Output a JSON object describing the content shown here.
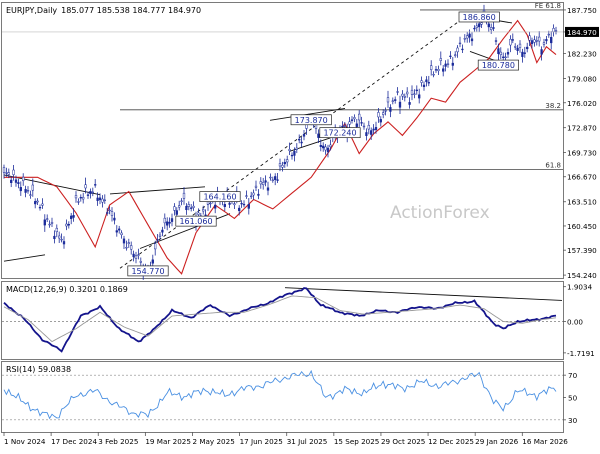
{
  "chart_data": [
    {
      "type": "candlestick",
      "title": "EURJPY,Daily",
      "ohlc_readout": "185.077 185.538 184.777 184.970",
      "current_price": 184.97,
      "watermark": "ActionForex",
      "ylim": [
        154.0,
        188.5
      ],
      "y_ticks": [
        "187.750",
        "184.970",
        "182.230",
        "179.080",
        "176.020",
        "172.870",
        "169.730",
        "166.670",
        "163.510",
        "160.450",
        "157.390",
        "154.240"
      ],
      "y_tick_values": [
        187.75,
        184.97,
        182.23,
        179.08,
        176.02,
        172.87,
        169.73,
        166.67,
        163.51,
        160.45,
        157.39,
        154.24
      ],
      "x_ticks": [
        "1 Nov 2024",
        "17 Dec 2024",
        "3 Feb 2025",
        "19 Mar 2025",
        "2 May 2025",
        "17 Jun 2025",
        "31 Jul 2025",
        "15 Sep 2025",
        "29 Oct 2025",
        "12 Dec 2025",
        "29 Jan 2026",
        "16 Mar 2026"
      ],
      "price_path": [
        [
          0,
          167.0
        ],
        [
          8,
          165.8
        ],
        [
          16,
          162.5
        ],
        [
          24,
          158.2
        ],
        [
          30,
          163.5
        ],
        [
          38,
          165.2
        ],
        [
          46,
          161.0
        ],
        [
          54,
          156.8
        ],
        [
          60,
          154.8
        ],
        [
          66,
          160.0
        ],
        [
          74,
          163.5
        ],
        [
          82,
          161.8
        ],
        [
          90,
          164.2
        ],
        [
          98,
          163.0
        ],
        [
          106,
          165.0
        ],
        [
          114,
          167.0
        ],
        [
          122,
          170.5
        ],
        [
          128,
          173.8
        ],
        [
          134,
          170.0
        ],
        [
          140,
          172.5
        ],
        [
          146,
          174.0
        ],
        [
          152,
          172.3
        ],
        [
          158,
          174.5
        ],
        [
          164,
          177.0
        ],
        [
          170,
          176.5
        ],
        [
          176,
          179.0
        ],
        [
          182,
          180.5
        ],
        [
          188,
          182.0
        ],
        [
          194,
          184.5
        ],
        [
          200,
          186.8
        ],
        [
          204,
          185.0
        ],
        [
          208,
          181.5
        ],
        [
          212,
          183.5
        ],
        [
          216,
          182.5
        ],
        [
          220,
          184.0
        ],
        [
          224,
          183.0
        ],
        [
          228,
          185.0
        ],
        [
          230,
          185.0
        ]
      ],
      "price_levels": [
        {
          "label": "186.860",
          "value": 186.86,
          "at": 198
        },
        {
          "label": "180.780",
          "value": 180.78,
          "at": 206
        },
        {
          "label": "173.870",
          "value": 173.87,
          "at": 128
        },
        {
          "label": "172.240",
          "value": 172.24,
          "at": 140
        },
        {
          "label": "164.160",
          "value": 164.16,
          "at": 90
        },
        {
          "label": "161.060",
          "value": 161.06,
          "at": 80
        },
        {
          "label": "154.770",
          "value": 154.77,
          "at": 60
        }
      ],
      "fib_levels": [
        {
          "label": "FE 61.8",
          "value": 187.75
        },
        {
          "label": "38.2",
          "value": 175.13
        },
        {
          "label": "61.8",
          "value": 167.6
        }
      ]
    },
    {
      "type": "line",
      "label": "MACD(12,26,9) 0.3201 0.1869",
      "ylim": [
        -2.0,
        2.05
      ],
      "y_ticks": [
        "1.9034",
        "0.00",
        "-1.7191"
      ],
      "y_tick_values": [
        1.9034,
        0.0,
        -1.7191
      ],
      "series": [
        {
          "points": [
            [
              0,
              1.0
            ],
            [
              8,
              0.2
            ],
            [
              16,
              -1.0
            ],
            [
              24,
              -1.6
            ],
            [
              32,
              0.3
            ],
            [
              40,
              0.8
            ],
            [
              48,
              -0.4
            ],
            [
              56,
              -1.1
            ],
            [
              62,
              -0.5
            ],
            [
              70,
              0.6
            ],
            [
              78,
              0.2
            ],
            [
              86,
              0.9
            ],
            [
              94,
              0.3
            ],
            [
              102,
              0.7
            ],
            [
              110,
              1.0
            ],
            [
              118,
              1.5
            ],
            [
              126,
              1.8
            ],
            [
              132,
              0.9
            ],
            [
              140,
              0.5
            ],
            [
              148,
              0.3
            ],
            [
              156,
              0.6
            ],
            [
              164,
              0.5
            ],
            [
              172,
              0.8
            ],
            [
              180,
              0.7
            ],
            [
              188,
              1.0
            ],
            [
              196,
              1.1
            ],
            [
              204,
              -0.1
            ],
            [
              208,
              -0.4
            ],
            [
              214,
              0.0
            ],
            [
              222,
              0.1
            ],
            [
              230,
              0.3
            ]
          ]
        },
        {
          "points": [
            [
              0,
              0.8
            ],
            [
              10,
              0.1
            ],
            [
              20,
              -1.1
            ],
            [
              30,
              -0.4
            ],
            [
              40,
              0.5
            ],
            [
              50,
              -0.3
            ],
            [
              60,
              -0.8
            ],
            [
              70,
              0.3
            ],
            [
              80,
              0.4
            ],
            [
              90,
              0.5
            ],
            [
              100,
              0.5
            ],
            [
              110,
              0.9
            ],
            [
              120,
              1.4
            ],
            [
              130,
              1.3
            ],
            [
              140,
              0.6
            ],
            [
              150,
              0.4
            ],
            [
              160,
              0.5
            ],
            [
              170,
              0.6
            ],
            [
              180,
              0.7
            ],
            [
              190,
              0.9
            ],
            [
              200,
              0.7
            ],
            [
              208,
              0.0
            ],
            [
              216,
              -0.1
            ],
            [
              224,
              0.1
            ],
            [
              230,
              0.2
            ]
          ]
        }
      ]
    },
    {
      "type": "line",
      "label": "RSI(14) 59.0838",
      "ylim": [
        20,
        80
      ],
      "y_ticks": [
        "70",
        "50",
        "30"
      ],
      "y_tick_values": [
        70,
        50,
        30
      ],
      "series": [
        {
          "points": [
            [
              0,
              58
            ],
            [
              8,
              46
            ],
            [
              16,
              35
            ],
            [
              22,
              33
            ],
            [
              30,
              52
            ],
            [
              38,
              56
            ],
            [
              46,
              44
            ],
            [
              54,
              36
            ],
            [
              60,
              34
            ],
            [
              68,
              54
            ],
            [
              76,
              51
            ],
            [
              84,
              57
            ],
            [
              92,
              52
            ],
            [
              100,
              58
            ],
            [
              108,
              61
            ],
            [
              116,
              67
            ],
            [
              122,
              70
            ],
            [
              128,
              72
            ],
            [
              134,
              50
            ],
            [
              142,
              57
            ],
            [
              150,
              54
            ],
            [
              158,
              63
            ],
            [
              166,
              58
            ],
            [
              174,
              64
            ],
            [
              182,
              60
            ],
            [
              190,
              66
            ],
            [
              198,
              71
            ],
            [
              204,
              46
            ],
            [
              208,
              40
            ],
            [
              214,
              56
            ],
            [
              222,
              52
            ],
            [
              230,
              59
            ]
          ]
        }
      ]
    }
  ],
  "colors": {
    "candle": "#1a2a9a",
    "ma_dashed": "#222222",
    "ma_red": "#cc2020",
    "macd_line": "#14148c",
    "macd_signal": "#999999",
    "rsi_line": "#4a90e2",
    "level_box_text": "#1a2a9a",
    "watermark": "#c8c8c8"
  }
}
